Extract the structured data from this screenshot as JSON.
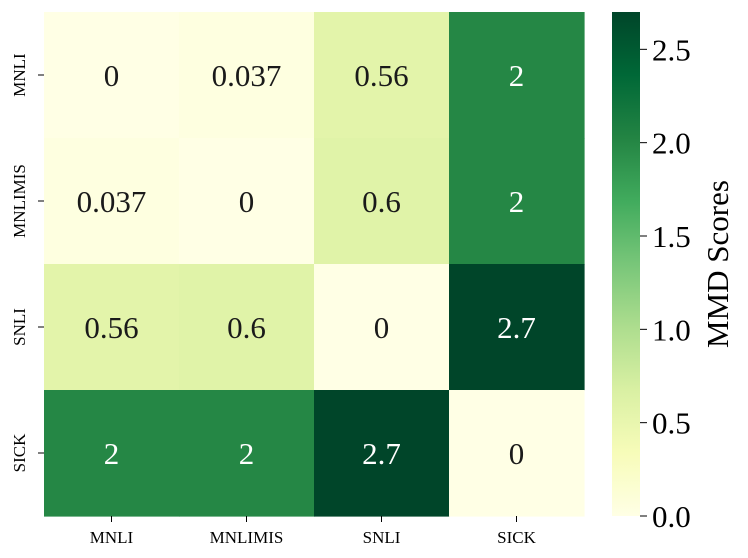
{
  "chart_data": {
    "type": "heatmap",
    "title": "",
    "xlabel": "",
    "ylabel": "",
    "x_categories": [
      "MNLI",
      "MNLIMIS",
      "SNLI",
      "SICK"
    ],
    "y_categories": [
      "MNLI",
      "MNLIMIS",
      "SNLI",
      "SICK"
    ],
    "values": [
      [
        0,
        0.037,
        0.56,
        2
      ],
      [
        0.037,
        0,
        0.6,
        2
      ],
      [
        0.56,
        0.6,
        0,
        2.7
      ],
      [
        2,
        2,
        2.7,
        0
      ]
    ],
    "cell_labels": [
      [
        "0",
        "0.037",
        "0.56",
        "2"
      ],
      [
        "0.037",
        "0",
        "0.6",
        "2"
      ],
      [
        "0.56",
        "0.6",
        "0",
        "2.7"
      ],
      [
        "2",
        "2",
        "2.7",
        "0"
      ]
    ],
    "colorbar": {
      "label": "MMD Scores",
      "range": [
        0,
        2.7
      ],
      "ticks": [
        "0.0",
        "0.5",
        "1.0",
        "1.5",
        "2.0",
        "2.5"
      ],
      "colormap": "YlGn",
      "stops": [
        "#ffffe5",
        "#f7fcb9",
        "#d9f0a3",
        "#addd8e",
        "#78c679",
        "#41ab5d",
        "#238443",
        "#006837",
        "#004529"
      ]
    }
  }
}
